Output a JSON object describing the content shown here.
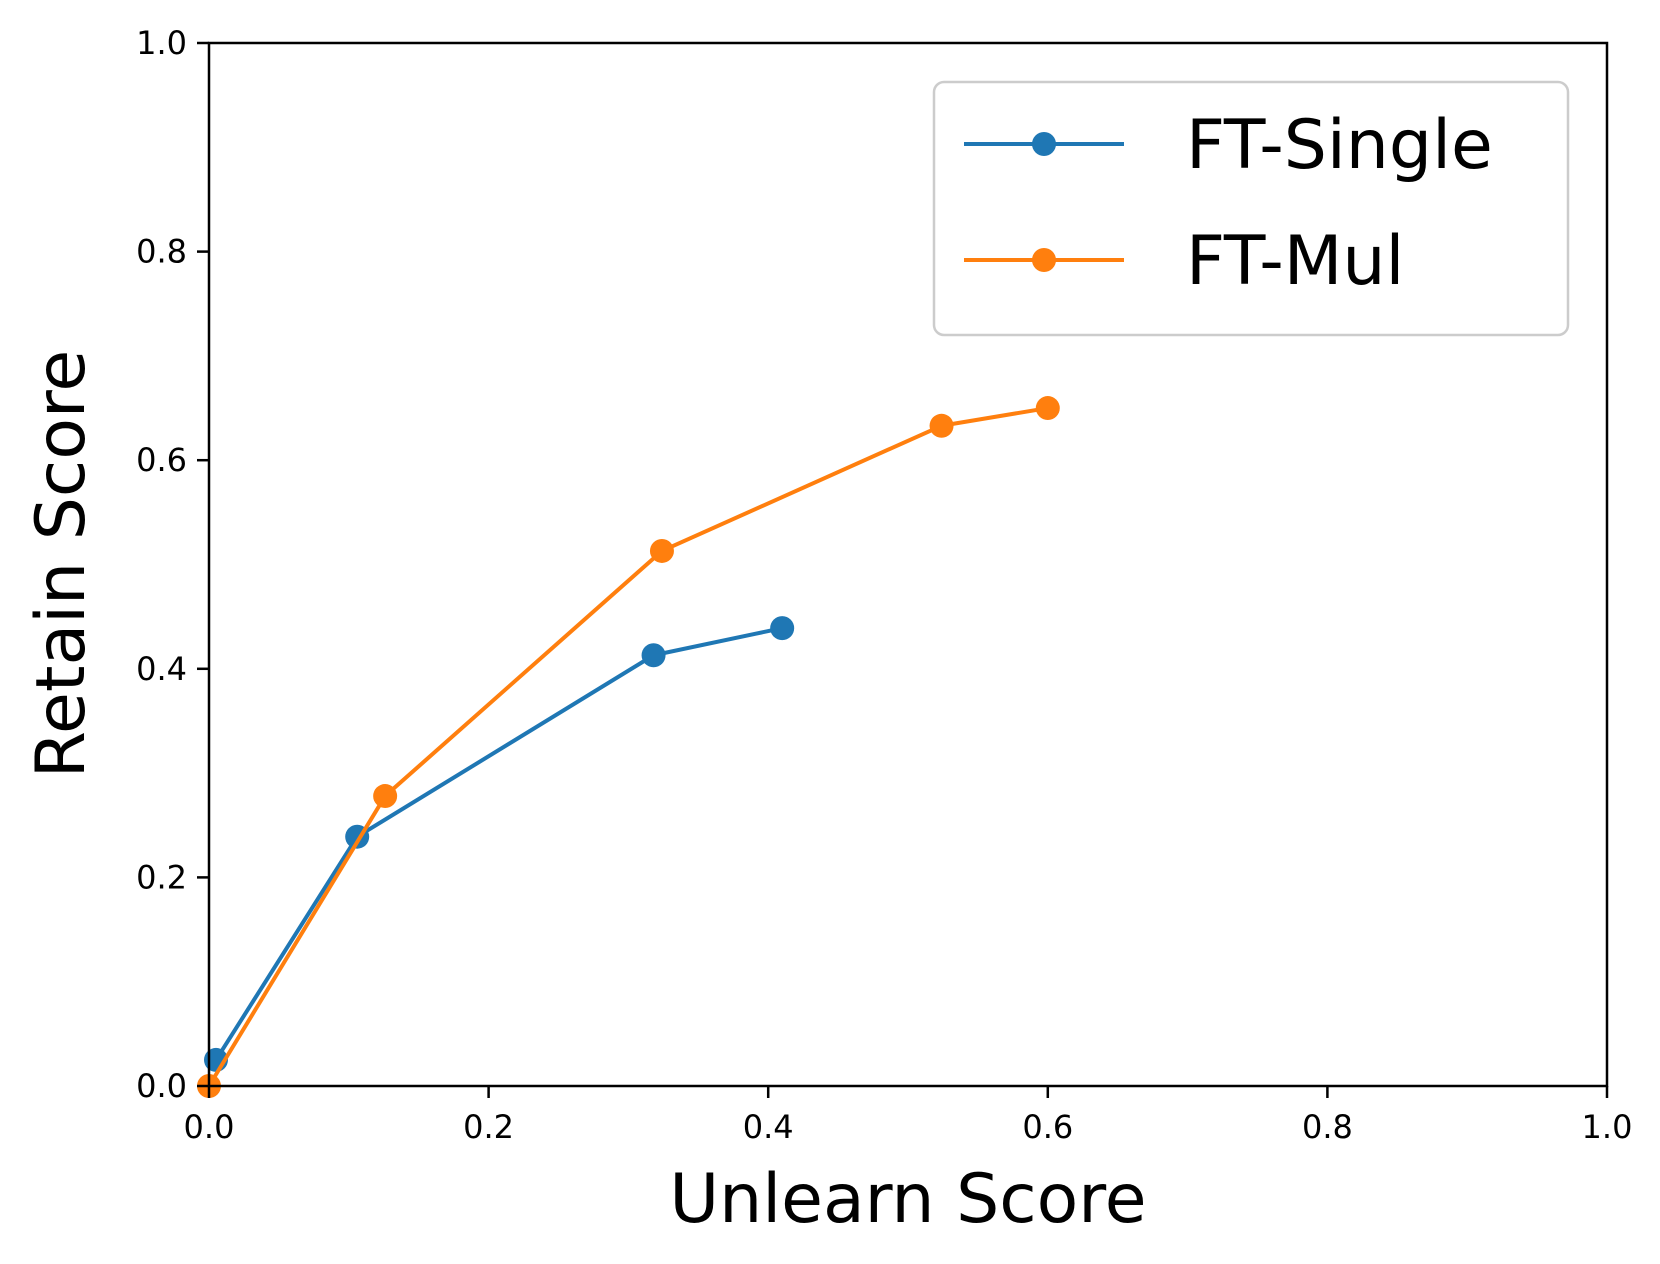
{
  "chart_data": {
    "type": "line",
    "title": "",
    "xlabel": "Unlearn Score",
    "ylabel": "Retain Score",
    "xlim": [
      0.0,
      1.0
    ],
    "ylim": [
      0.0,
      1.0
    ],
    "xticks": [
      "0.0",
      "0.2",
      "0.4",
      "0.6",
      "0.8",
      "1.0"
    ],
    "yticks": [
      "0.0",
      "0.2",
      "0.4",
      "0.6",
      "0.8",
      "1.0"
    ],
    "grid": false,
    "legend_position": "top-right",
    "series": [
      {
        "name": "FT-Single",
        "color": "#1f77b4",
        "marker": "circle",
        "x": [
          0.005,
          0.106,
          0.318,
          0.41
        ],
        "y": [
          0.025,
          0.239,
          0.413,
          0.439
        ]
      },
      {
        "name": "FT-Mul",
        "color": "#ff7f0e",
        "marker": "circle",
        "x": [
          0.0,
          0.126,
          0.324,
          0.524,
          0.6
        ],
        "y": [
          0.0,
          0.278,
          0.513,
          0.633,
          0.65
        ]
      }
    ]
  }
}
